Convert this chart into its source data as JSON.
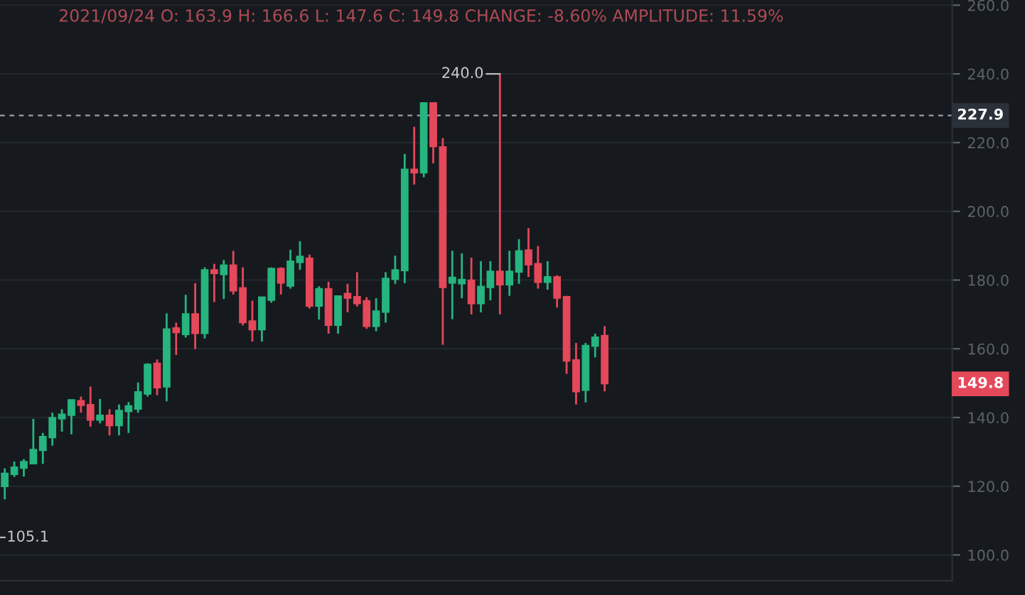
{
  "chart_data": {
    "type": "candlestick",
    "title": "2021/09/24 O: 163.9 H: 166.6 L: 147.6 C: 149.8 CHANGE: -8.60% AMPLITUDE: 11.59%",
    "categories": [
      null,
      null,
      null,
      null,
      null,
      null,
      null,
      null,
      null,
      null,
      null,
      null,
      null,
      null,
      null,
      null,
      null,
      null,
      null,
      null,
      null,
      null,
      null,
      null,
      null,
      null,
      null,
      null,
      null,
      null,
      null,
      null,
      null,
      null,
      null,
      null,
      null,
      null,
      null,
      null,
      null,
      null,
      null,
      null,
      null,
      null,
      null,
      null,
      null,
      null,
      null,
      null,
      null,
      null,
      null,
      null,
      null,
      null,
      null,
      null,
      null,
      null,
      null,
      null,
      null,
      null,
      null,
      null,
      null,
      null,
      null,
      null,
      null,
      null,
      null,
      null,
      null,
      null,
      null,
      null,
      null,
      null,
      null,
      null,
      null,
      null,
      null,
      null,
      null,
      null,
      null,
      null,
      null,
      null,
      null,
      null,
      null,
      null,
      null,
      null
    ],
    "ohlc": [
      [
        119.9,
        125.2,
        116.2,
        123.8
      ],
      [
        123.4,
        127.2,
        122.7,
        125.6
      ],
      [
        125.2,
        127.9,
        122.8,
        127.2
      ],
      [
        126.5,
        139.6,
        126.5,
        130.7
      ],
      [
        130.4,
        135.5,
        126.5,
        134.5
      ],
      [
        134.1,
        141.4,
        131.8,
        140.0
      ],
      [
        139.6,
        142.4,
        135.9,
        141.0
      ],
      [
        140.6,
        145.2,
        135.1,
        145.2
      ],
      [
        144.9,
        146.1,
        141.4,
        143.5
      ],
      [
        143.8,
        149.0,
        137.3,
        139.2
      ],
      [
        139.2,
        145.4,
        138.3,
        140.7
      ],
      [
        140.7,
        142.4,
        134.8,
        137.6
      ],
      [
        137.6,
        143.8,
        134.8,
        142.1
      ],
      [
        141.7,
        144.5,
        135.5,
        143.4
      ],
      [
        142.4,
        150.2,
        141.4,
        147.5
      ],
      [
        146.8,
        155.8,
        146.1,
        155.5
      ],
      [
        155.8,
        156.9,
        146.5,
        148.6
      ],
      [
        148.9,
        170.3,
        144.7,
        165.8
      ],
      [
        166.1,
        167.6,
        158.2,
        164.7
      ],
      [
        164.1,
        175.7,
        163.3,
        170.2
      ],
      [
        170.2,
        179.1,
        159.9,
        164.4
      ],
      [
        164.4,
        183.7,
        163.0,
        183.0
      ],
      [
        183.0,
        184.7,
        173.6,
        181.9
      ],
      [
        181.6,
        185.8,
        174.5,
        184.4
      ],
      [
        184.4,
        188.5,
        175.8,
        176.8
      ],
      [
        177.8,
        183.7,
        166.8,
        167.6
      ],
      [
        168.1,
        174.0,
        162.1,
        165.5
      ],
      [
        165.5,
        175.1,
        162.1,
        175.1
      ],
      [
        174.1,
        183.7,
        173.4,
        183.4
      ],
      [
        183.4,
        183.7,
        175.8,
        179.1
      ],
      [
        178.2,
        188.8,
        177.5,
        185.5
      ],
      [
        185.1,
        191.3,
        183.0,
        186.9
      ],
      [
        186.4,
        187.4,
        171.7,
        172.4
      ],
      [
        172.4,
        178.2,
        168.5,
        177.5
      ],
      [
        177.5,
        179.5,
        164.4,
        166.8
      ],
      [
        166.8,
        175.4,
        164.4,
        175.4
      ],
      [
        176.1,
        178.9,
        170.6,
        174.7
      ],
      [
        175.2,
        182.3,
        172.3,
        173.1
      ],
      [
        174.0,
        175.0,
        165.8,
        166.5
      ],
      [
        166.5,
        174.7,
        165.1,
        171.0
      ],
      [
        170.6,
        182.3,
        167.6,
        180.5
      ],
      [
        180.2,
        187.1,
        178.9,
        183.0
      ],
      [
        182.7,
        216.7,
        179.1,
        212.3
      ],
      [
        212.3,
        224.6,
        207.8,
        211.2
      ],
      [
        211.2,
        231.6,
        209.9,
        231.6
      ],
      [
        231.6,
        231.6,
        214.0,
        218.8
      ],
      [
        218.8,
        221.3,
        161.2,
        177.8
      ],
      [
        179.1,
        188.5,
        168.6,
        180.8
      ],
      [
        178.9,
        187.8,
        174.7,
        180.2
      ],
      [
        180.0,
        186.5,
        170.0,
        173.1
      ],
      [
        173.1,
        185.5,
        170.6,
        178.2
      ],
      [
        177.8,
        185.5,
        174.1,
        182.6
      ],
      [
        182.6,
        240.0,
        170.0,
        178.6
      ],
      [
        178.6,
        188.5,
        175.4,
        182.6
      ],
      [
        182.3,
        191.9,
        178.9,
        188.5
      ],
      [
        188.8,
        195.1,
        180.9,
        184.4
      ],
      [
        184.8,
        189.9,
        177.5,
        179.3
      ],
      [
        179.3,
        185.5,
        177.2,
        181.0
      ],
      [
        181.0,
        181.4,
        172.0,
        174.7
      ],
      [
        175.2,
        175.4,
        152.7,
        156.4
      ],
      [
        156.8,
        161.7,
        143.8,
        147.5
      ],
      [
        147.9,
        161.7,
        144.4,
        161.0
      ],
      [
        160.7,
        164.4,
        157.5,
        163.4
      ],
      [
        163.9,
        166.6,
        147.6,
        149.8
      ],
      null,
      null,
      null,
      null,
      null,
      null,
      null,
      null,
      null,
      null,
      null,
      null,
      null,
      null,
      null,
      null,
      null,
      null,
      null,
      null,
      null,
      null,
      null,
      null,
      null,
      null,
      null,
      null,
      null,
      null,
      null,
      null,
      null,
      null,
      null,
      null
    ],
    "colors": [
      "#26b47f",
      "#26b47f",
      "#26b47f",
      "#26b47f",
      "#26b47f",
      "#26b47f",
      "#26b47f",
      "#26b47f",
      "#e5485a",
      "#e5485a",
      "#26b47f",
      "#e5485a",
      "#26b47f",
      "#26b47f",
      "#26b47f",
      "#26b47f",
      "#e5485a",
      "#26b47f",
      "#e5485a",
      "#26b47f",
      "#e5485a",
      "#26b47f",
      "#e5485a",
      "#26b47f",
      "#e5485a",
      "#e5485a",
      "#e5485a",
      "#26b47f",
      "#26b47f",
      "#e5485a",
      "#26b47f",
      "#26b47f",
      "#e5485a",
      "#26b47f",
      "#e5485a",
      "#26b47f",
      "#e5485a",
      "#e5485a",
      "#e5485a",
      "#26b47f",
      "#26b47f",
      "#26b47f",
      "#26b47f",
      "#e5485a",
      "#26b47f",
      "#e5485a",
      "#e5485a",
      "#26b47f",
      "#26b47f",
      "#e5485a",
      "#26b47f",
      "#26b47f",
      "#e5485a",
      "#26b47f",
      "#26b47f",
      "#e5485a",
      "#e5485a",
      "#26b47f",
      "#e5485a",
      "#e5485a",
      "#e5485a",
      "#26b47f",
      "#26b47f",
      "#e5485a",
      null,
      null,
      null,
      null,
      null,
      null,
      null,
      null,
      null,
      null,
      null,
      null,
      null,
      null,
      null,
      null,
      null,
      null,
      null,
      null,
      null,
      null,
      null,
      null,
      null,
      null,
      null,
      null,
      null,
      null,
      null,
      null,
      null,
      null,
      null,
      null
    ],
    "ylim": [
      92.5,
      261.5
    ],
    "yticks": [
      {
        "value": 100,
        "label": "100.0"
      },
      {
        "value": 120,
        "label": "120.0"
      },
      {
        "value": 140,
        "label": "140.0"
      },
      {
        "value": 160,
        "label": "160.0"
      },
      {
        "value": 180,
        "label": "180.0"
      },
      {
        "value": 200,
        "label": "200.0"
      },
      {
        "value": 220,
        "label": "220.0"
      },
      {
        "value": 240,
        "label": "240.0"
      },
      {
        "value": 260,
        "label": "260.0"
      }
    ],
    "grid": true,
    "ref_lines": [
      {
        "axis": "y",
        "value": 227.9,
        "label": "227.9",
        "color": "#9aa0a6",
        "line_style": "dashed"
      }
    ],
    "annotations": [
      "240.0",
      "105.1",
      {
        "text": "149.8",
        "y": 149.8
      }
    ]
  }
}
